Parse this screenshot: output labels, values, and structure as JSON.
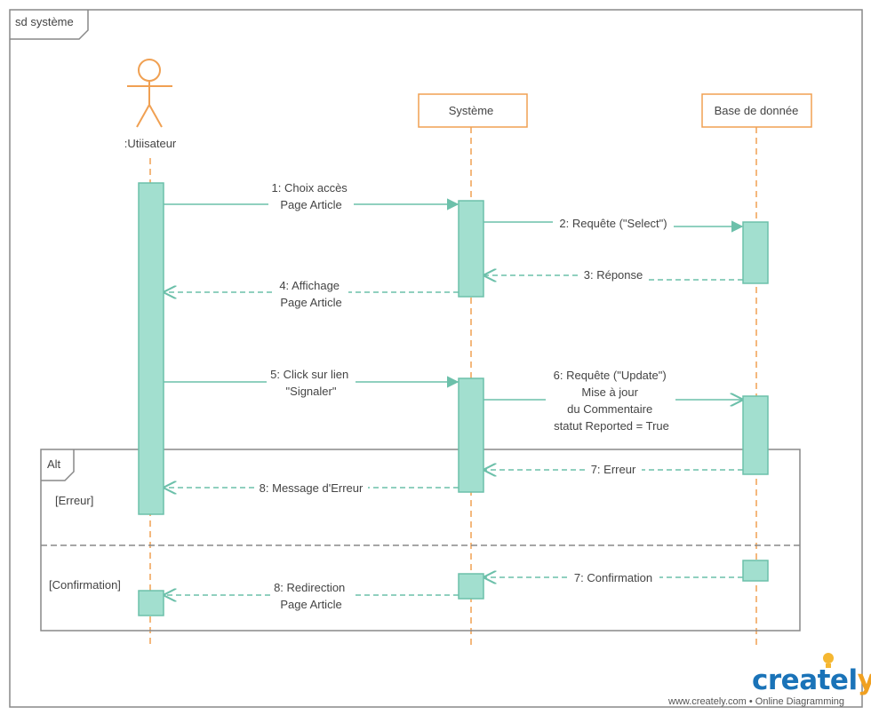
{
  "frame": {
    "title": "sd système"
  },
  "participants": {
    "user": ":Utiisateur",
    "system": "Système",
    "db": "Base de donnée"
  },
  "messages": {
    "m1": [
      "1: Choix accès",
      "Page Article"
    ],
    "m2": [
      "2: Requête (\"Select\")"
    ],
    "m3": [
      "3: Réponse"
    ],
    "m4": [
      "4: Affichage",
      "Page Article"
    ],
    "m5": [
      "5: Click sur lien",
      "\"Signaler\""
    ],
    "m6": [
      "6: Requête (\"Update\")",
      "Mise à jour",
      "du Commentaire",
      "statut Reported = True"
    ],
    "m7a": [
      "7: Erreur"
    ],
    "m8a": [
      "8: Message d'Erreur"
    ],
    "m7b": [
      "7: Confirmation"
    ],
    "m8b": [
      "8: Redirection",
      "Page Article"
    ]
  },
  "fragment": {
    "operator": "Alt",
    "guard1": "[Erreur]",
    "guard2": "[Confirmation]"
  },
  "branding": {
    "logo_main": "createl",
    "logo_y": "y",
    "tagline": "www.creately.com • Online Diagramming"
  },
  "colors": {
    "lifeline": "#f0a052",
    "activation_fill": "#a2dfcf",
    "activation_stroke": "#6cc0aa",
    "message": "#6cc0aa",
    "frame": "#888888"
  }
}
